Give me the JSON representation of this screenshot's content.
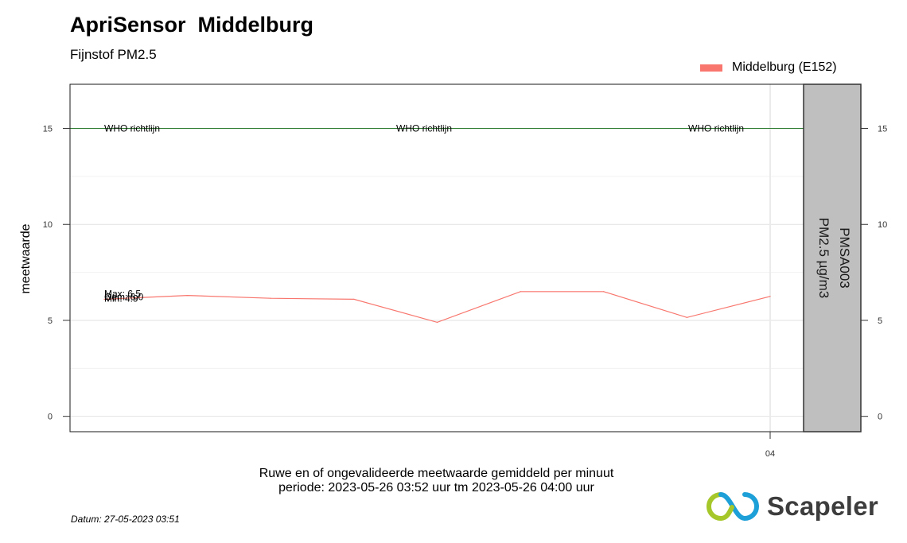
{
  "header": {
    "title": "ApriSensor  Middelburg",
    "subtitle": "Fijnstof PM2.5"
  },
  "legend": {
    "label": "Middelburg (E152)",
    "color": "#f8766d"
  },
  "caption": {
    "line1": "Ruwe en of ongevalideerde meetwaarde gemiddeld per minuut",
    "line2": "periode: 2023-05-26 03:52 uur tm 2023-05-26 04:00 uur"
  },
  "footer": {
    "datum": "Datum: 27-05-2023 03:51",
    "logo_text": "Scapeler"
  },
  "chart_data": {
    "type": "line",
    "ylabel": "meetwaarde",
    "facet_label_line1": "PMSA003",
    "facet_label_line2": "PM2.5 µg/m3",
    "x": [
      "03:52",
      "03:53",
      "03:54",
      "03:55",
      "03:56",
      "03:57",
      "03:58",
      "03:59",
      "04:00"
    ],
    "x_tick_labels": [
      {
        "x": "04:00",
        "label": "04"
      }
    ],
    "ylim": [
      -0.8,
      17.3
    ],
    "y_ticks": [
      0,
      5,
      10,
      15
    ],
    "grid": true,
    "series": [
      {
        "name": "Middelburg (E152)",
        "color": "#f8766d",
        "values": [
          6.1,
          6.3,
          6.15,
          6.1,
          4.9,
          6.5,
          6.5,
          5.15,
          6.25
        ]
      }
    ],
    "reference_line": {
      "value": 15,
      "label": "WHO richtlijn",
      "color": "#2e7d32"
    },
    "annotations": {
      "max": "Max: 6.5",
      "gem": "Gem: 6.0",
      "min": "Min: 4.9"
    }
  }
}
